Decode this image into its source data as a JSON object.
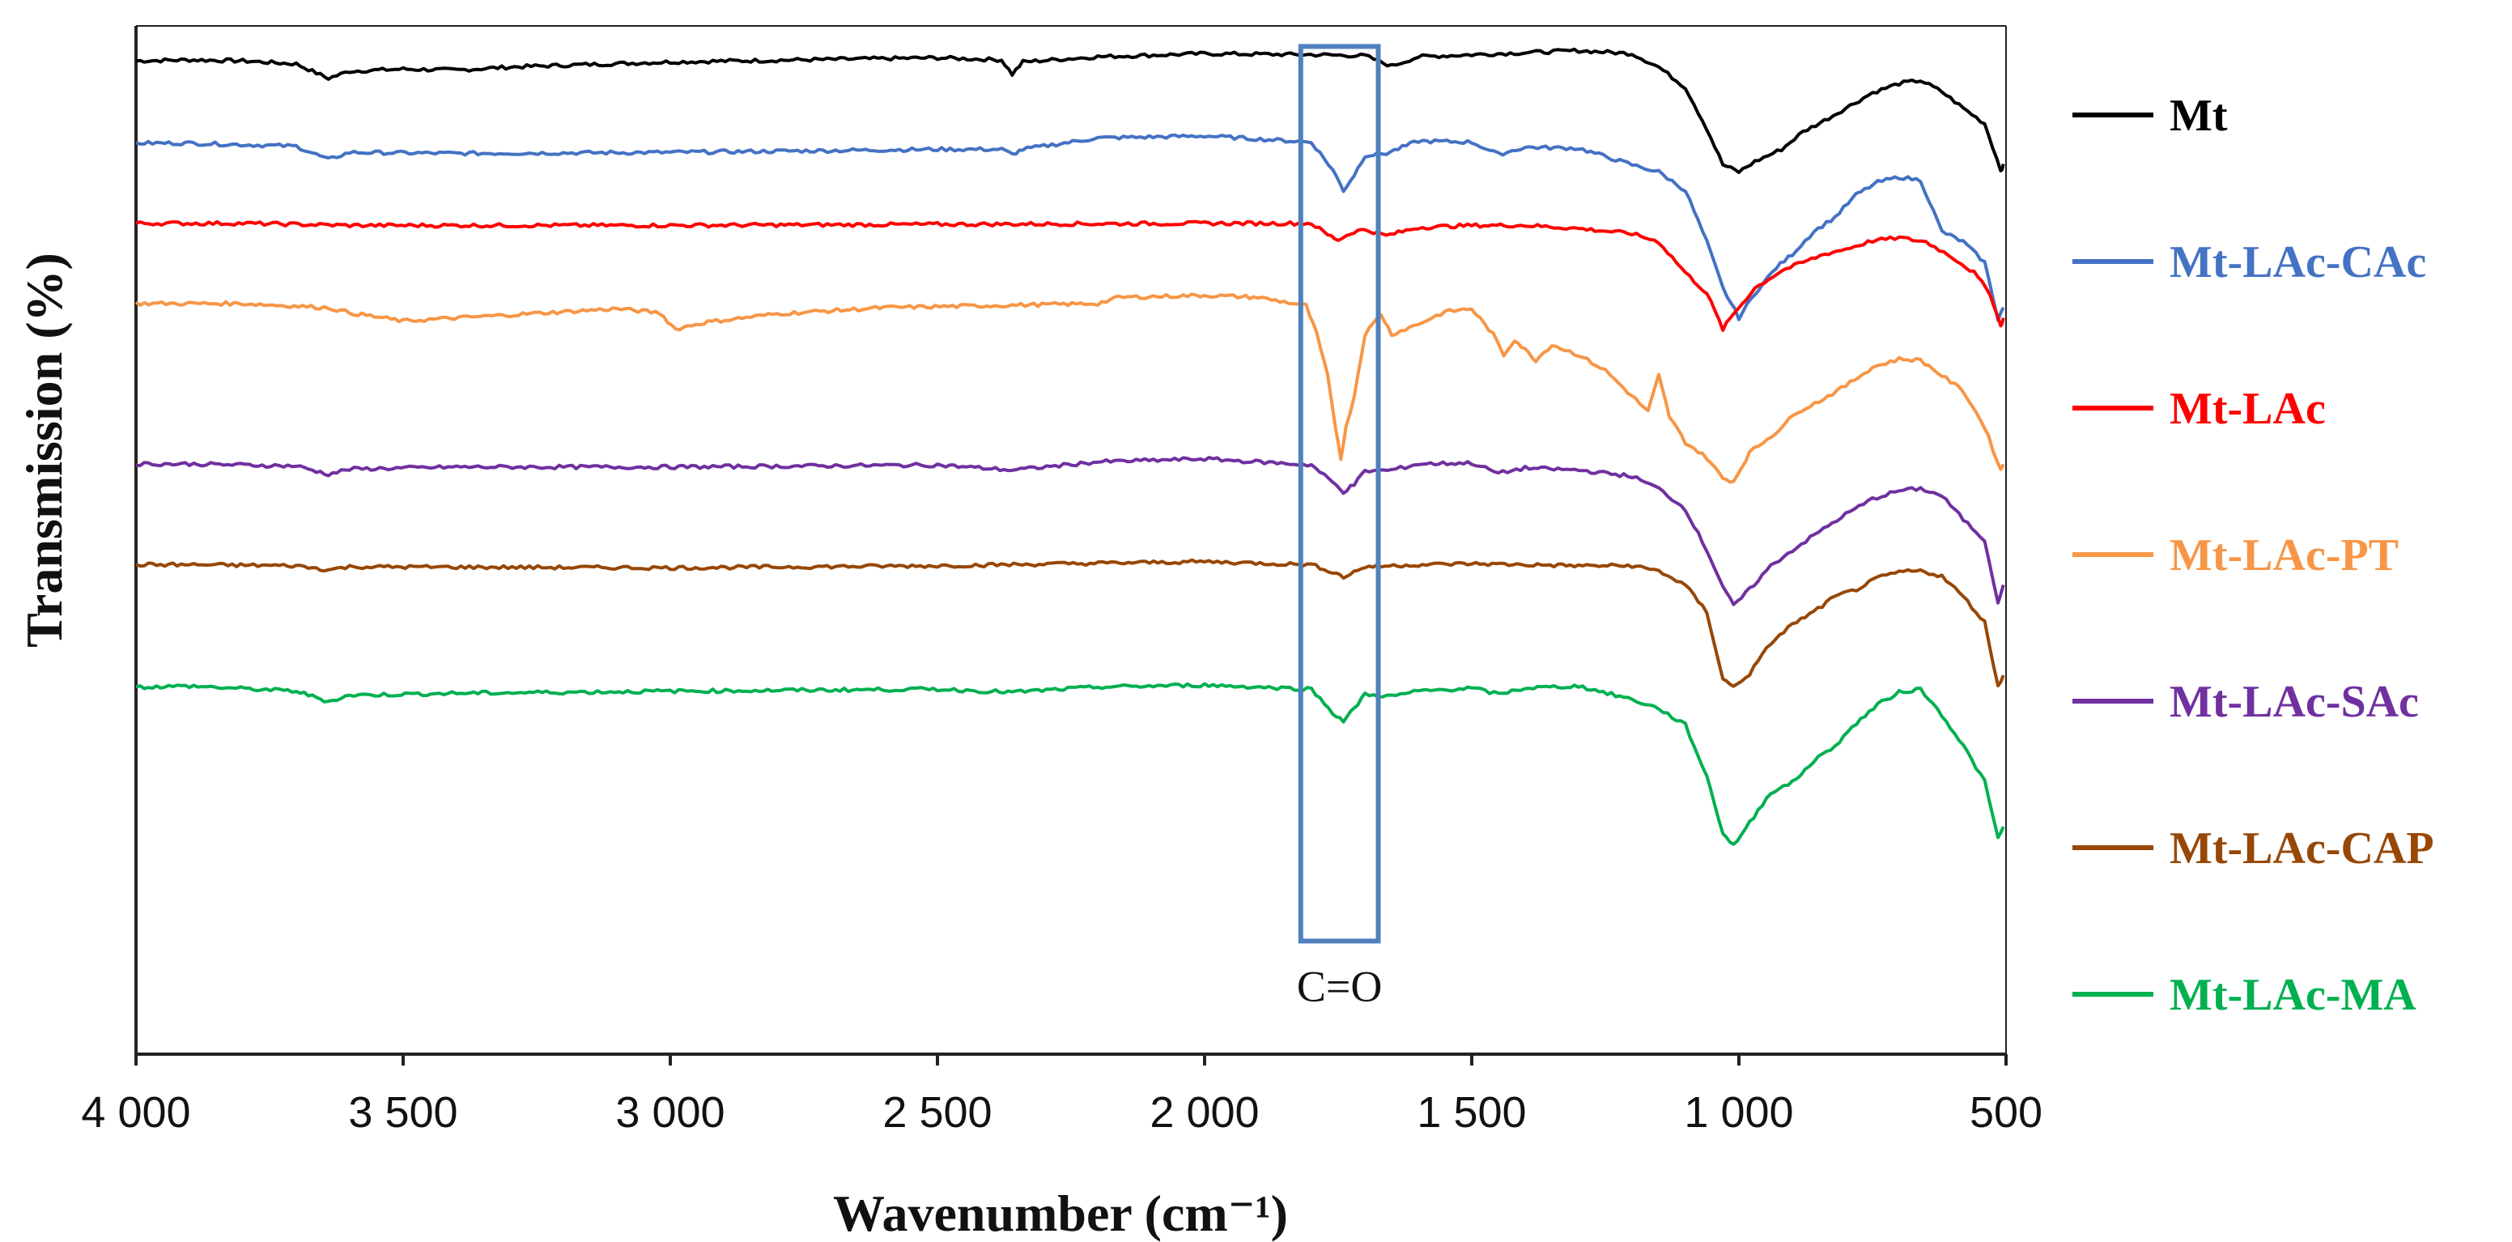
{
  "chart_data": {
    "type": "line",
    "title": "",
    "xlabel": "Wavenumber (cm⁻¹)",
    "ylabel": "Transmission (%)",
    "xlim": [
      4000,
      500
    ],
    "x_reversed": true,
    "ylim": [
      0,
      100
    ],
    "x_ticks": [
      4000,
      3500,
      3000,
      2500,
      2000,
      1500,
      1000,
      500
    ],
    "x_tick_labels": [
      "4 000",
      "3 500",
      "3 000",
      "2 500",
      "2 000",
      "1 500",
      "1 000",
      "500"
    ],
    "y_ticks_shown": false,
    "grid": false,
    "legend_position": "right",
    "annotation": {
      "label": "C=O",
      "x_range": [
        1820,
        1675
      ],
      "y_range": [
        11,
        98
      ]
    },
    "series": [
      {
        "name": "Mt",
        "color": "#000000",
        "points": [
          [
            4000,
            96.6
          ],
          [
            3900,
            96.7
          ],
          [
            3800,
            96.6
          ],
          [
            3700,
            96.3
          ],
          [
            3640,
            94.9
          ],
          [
            3600,
            95.6
          ],
          [
            3500,
            95.8
          ],
          [
            3400,
            95.7
          ],
          [
            3300,
            96.0
          ],
          [
            3000,
            96.5
          ],
          [
            2500,
            96.9
          ],
          [
            2380,
            96.7
          ],
          [
            2360,
            95.3
          ],
          [
            2340,
            96.5
          ],
          [
            2200,
            97.0
          ],
          [
            2000,
            97.3
          ],
          [
            1800,
            97.2
          ],
          [
            1700,
            97.1
          ],
          [
            1650,
            96.1
          ],
          [
            1600,
            97.0
          ],
          [
            1500,
            97.2
          ],
          [
            1300,
            97.6
          ],
          [
            1200,
            97.3
          ],
          [
            1150,
            96.0
          ],
          [
            1100,
            94.0
          ],
          [
            1060,
            90.0
          ],
          [
            1030,
            86.5
          ],
          [
            1000,
            85.8
          ],
          [
            970,
            86.8
          ],
          [
            920,
            88.0
          ],
          [
            880,
            89.7
          ],
          [
            840,
            90.8
          ],
          [
            800,
            92.0
          ],
          [
            750,
            93.5
          ],
          [
            700,
            94.4
          ],
          [
            660,
            94.7
          ],
          [
            620,
            93.6
          ],
          [
            580,
            92.0
          ],
          [
            540,
            90.5
          ],
          [
            510,
            86.0
          ],
          [
            505,
            86.4
          ]
        ]
      },
      {
        "name": "Mt-LAc-CAc",
        "color": "#4472C4",
        "points": [
          [
            4000,
            88.6
          ],
          [
            3900,
            88.6
          ],
          [
            3700,
            88.3
          ],
          [
            3640,
            87.0
          ],
          [
            3600,
            87.7
          ],
          [
            3400,
            87.6
          ],
          [
            3000,
            87.7
          ],
          [
            2500,
            88.0
          ],
          [
            2380,
            88.0
          ],
          [
            2360,
            87.5
          ],
          [
            2340,
            88.0
          ],
          [
            2200,
            89.1
          ],
          [
            2000,
            89.3
          ],
          [
            1800,
            88.7
          ],
          [
            1760,
            86.0
          ],
          [
            1740,
            84.0
          ],
          [
            1720,
            85.5
          ],
          [
            1700,
            87.4
          ],
          [
            1660,
            87.6
          ],
          [
            1600,
            88.8
          ],
          [
            1500,
            88.7
          ],
          [
            1450,
            87.5
          ],
          [
            1400,
            88.2
          ],
          [
            1300,
            88.1
          ],
          [
            1200,
            86.5
          ],
          [
            1150,
            85.8
          ],
          [
            1100,
            84.0
          ],
          [
            1060,
            79.0
          ],
          [
            1030,
            74.5
          ],
          [
            1000,
            71.6
          ],
          [
            970,
            74.0
          ],
          [
            930,
            76.5
          ],
          [
            900,
            77.8
          ],
          [
            860,
            80.0
          ],
          [
            820,
            81.4
          ],
          [
            780,
            83.6
          ],
          [
            740,
            84.8
          ],
          [
            700,
            85.3
          ],
          [
            660,
            85.0
          ],
          [
            620,
            80.0
          ],
          [
            580,
            79.0
          ],
          [
            540,
            77.0
          ],
          [
            515,
            71.5
          ],
          [
            505,
            72.6
          ]
        ]
      },
      {
        "name": "Mt-LAc",
        "color": "#FF0000",
        "points": [
          [
            4000,
            80.8
          ],
          [
            3800,
            80.8
          ],
          [
            3600,
            80.6
          ],
          [
            3000,
            80.6
          ],
          [
            2500,
            80.7
          ],
          [
            2000,
            80.8
          ],
          [
            1800,
            80.8
          ],
          [
            1770,
            79.7
          ],
          [
            1750,
            79.2
          ],
          [
            1720,
            80.0
          ],
          [
            1700,
            80.2
          ],
          [
            1660,
            79.6
          ],
          [
            1600,
            80.4
          ],
          [
            1500,
            80.6
          ],
          [
            1400,
            80.6
          ],
          [
            1300,
            80.3
          ],
          [
            1200,
            79.8
          ],
          [
            1150,
            79.0
          ],
          [
            1100,
            76.0
          ],
          [
            1060,
            74.0
          ],
          [
            1030,
            70.5
          ],
          [
            1010,
            72.0
          ],
          [
            970,
            74.5
          ],
          [
            920,
            76.2
          ],
          [
            880,
            77.0
          ],
          [
            840,
            77.8
          ],
          [
            800,
            78.3
          ],
          [
            750,
            79.1
          ],
          [
            700,
            79.4
          ],
          [
            650,
            79.0
          ],
          [
            600,
            77.5
          ],
          [
            560,
            76.0
          ],
          [
            530,
            74.0
          ],
          [
            510,
            70.8
          ],
          [
            505,
            71.6
          ]
        ]
      },
      {
        "name": "Mt-LAc-PT",
        "color": "#F79646",
        "points": [
          [
            4000,
            73.0
          ],
          [
            3800,
            73.0
          ],
          [
            3640,
            72.6
          ],
          [
            3600,
            72.1
          ],
          [
            3500,
            71.3
          ],
          [
            3300,
            71.9
          ],
          [
            3100,
            72.5
          ],
          [
            3020,
            72.1
          ],
          [
            2990,
            70.5
          ],
          [
            2960,
            70.9
          ],
          [
            2930,
            71.2
          ],
          [
            2800,
            72.0
          ],
          [
            2600,
            72.6
          ],
          [
            2400,
            72.8
          ],
          [
            2200,
            73.0
          ],
          [
            2160,
            73.6
          ],
          [
            2000,
            73.8
          ],
          [
            1900,
            73.6
          ],
          [
            1810,
            72.8
          ],
          [
            1790,
            70.0
          ],
          [
            1770,
            66.0
          ],
          [
            1755,
            61.0
          ],
          [
            1745,
            58.0
          ],
          [
            1735,
            61.0
          ],
          [
            1720,
            64.0
          ],
          [
            1700,
            70.0
          ],
          [
            1670,
            72.0
          ],
          [
            1650,
            70.0
          ],
          [
            1600,
            71.0
          ],
          [
            1550,
            72.2
          ],
          [
            1500,
            72.5
          ],
          [
            1460,
            70.0
          ],
          [
            1440,
            68.0
          ],
          [
            1420,
            69.5
          ],
          [
            1400,
            68.5
          ],
          [
            1380,
            67.5
          ],
          [
            1350,
            69.0
          ],
          [
            1300,
            68.0
          ],
          [
            1250,
            66.5
          ],
          [
            1200,
            64.0
          ],
          [
            1170,
            62.5
          ],
          [
            1150,
            66.0
          ],
          [
            1130,
            62.0
          ],
          [
            1100,
            59.5
          ],
          [
            1060,
            58.0
          ],
          [
            1030,
            56.0
          ],
          [
            1010,
            55.7
          ],
          [
            980,
            58.5
          ],
          [
            930,
            60.5
          ],
          [
            890,
            62.5
          ],
          [
            850,
            63.5
          ],
          [
            800,
            65.0
          ],
          [
            750,
            66.8
          ],
          [
            700,
            67.6
          ],
          [
            660,
            67.5
          ],
          [
            620,
            66.0
          ],
          [
            580,
            64.5
          ],
          [
            540,
            61.0
          ],
          [
            510,
            56.8
          ],
          [
            505,
            57.4
          ]
        ]
      },
      {
        "name": "Mt-LAc-SAc",
        "color": "#7030A0",
        "points": [
          [
            4000,
            57.4
          ],
          [
            3900,
            57.4
          ],
          [
            3700,
            57.2
          ],
          [
            3640,
            56.4
          ],
          [
            3600,
            56.9
          ],
          [
            3400,
            57.1
          ],
          [
            3000,
            57.1
          ],
          [
            2500,
            57.3
          ],
          [
            2360,
            56.8
          ],
          [
            2200,
            57.6
          ],
          [
            2000,
            57.9
          ],
          [
            1800,
            57.3
          ],
          [
            1760,
            55.6
          ],
          [
            1740,
            54.7
          ],
          [
            1720,
            55.4
          ],
          [
            1700,
            56.7
          ],
          [
            1650,
            56.8
          ],
          [
            1600,
            57.4
          ],
          [
            1500,
            57.5
          ],
          [
            1450,
            56.5
          ],
          [
            1400,
            57.0
          ],
          [
            1300,
            56.8
          ],
          [
            1200,
            56.2
          ],
          [
            1150,
            55.0
          ],
          [
            1100,
            53.0
          ],
          [
            1060,
            49.0
          ],
          [
            1030,
            45.5
          ],
          [
            1010,
            43.6
          ],
          [
            980,
            45.2
          ],
          [
            940,
            47.5
          ],
          [
            900,
            49.0
          ],
          [
            850,
            50.8
          ],
          [
            800,
            52.5
          ],
          [
            750,
            54.0
          ],
          [
            700,
            54.8
          ],
          [
            660,
            55.0
          ],
          [
            620,
            54.3
          ],
          [
            580,
            52.0
          ],
          [
            540,
            50.0
          ],
          [
            515,
            44.0
          ],
          [
            505,
            45.5
          ]
        ]
      },
      {
        "name": "Mt-LAc-CAP",
        "color": "#974706",
        "points": [
          [
            4000,
            47.6
          ],
          [
            3900,
            47.6
          ],
          [
            3700,
            47.5
          ],
          [
            3640,
            47.1
          ],
          [
            3600,
            47.4
          ],
          [
            3000,
            47.3
          ],
          [
            2500,
            47.5
          ],
          [
            2000,
            47.9
          ],
          [
            1800,
            47.6
          ],
          [
            1760,
            46.9
          ],
          [
            1740,
            46.4
          ],
          [
            1720,
            46.9
          ],
          [
            1700,
            47.4
          ],
          [
            1600,
            47.6
          ],
          [
            1500,
            47.7
          ],
          [
            1400,
            47.6
          ],
          [
            1300,
            47.5
          ],
          [
            1200,
            47.5
          ],
          [
            1150,
            47.0
          ],
          [
            1100,
            45.6
          ],
          [
            1060,
            43.0
          ],
          [
            1030,
            36.5
          ],
          [
            1010,
            35.7
          ],
          [
            980,
            37.0
          ],
          [
            940,
            40.0
          ],
          [
            900,
            41.8
          ],
          [
            860,
            43.0
          ],
          [
            820,
            44.5
          ],
          [
            780,
            45.2
          ],
          [
            740,
            46.3
          ],
          [
            700,
            46.9
          ],
          [
            660,
            47.0
          ],
          [
            620,
            46.5
          ],
          [
            580,
            44.5
          ],
          [
            540,
            42.0
          ],
          [
            515,
            35.8
          ],
          [
            505,
            36.9
          ]
        ]
      },
      {
        "name": "Mt-LAc-MA",
        "color": "#00B050",
        "points": [
          [
            4000,
            35.7
          ],
          [
            3900,
            35.8
          ],
          [
            3700,
            35.3
          ],
          [
            3640,
            34.3
          ],
          [
            3600,
            34.9
          ],
          [
            3400,
            35.1
          ],
          [
            3000,
            35.3
          ],
          [
            2500,
            35.5
          ],
          [
            2360,
            35.2
          ],
          [
            2200,
            35.7
          ],
          [
            2000,
            35.9
          ],
          [
            1800,
            35.5
          ],
          [
            1760,
            33.2
          ],
          [
            1740,
            32.4
          ],
          [
            1720,
            33.6
          ],
          [
            1700,
            35.0
          ],
          [
            1650,
            34.8
          ],
          [
            1600,
            35.3
          ],
          [
            1500,
            35.6
          ],
          [
            1450,
            35.0
          ],
          [
            1400,
            35.6
          ],
          [
            1300,
            35.8
          ],
          [
            1200,
            34.5
          ],
          [
            1150,
            33.6
          ],
          [
            1100,
            32.0
          ],
          [
            1060,
            27.0
          ],
          [
            1030,
            21.5
          ],
          [
            1010,
            20.3
          ],
          [
            980,
            22.5
          ],
          [
            940,
            25.5
          ],
          [
            900,
            26.4
          ],
          [
            860,
            28.5
          ],
          [
            820,
            30.0
          ],
          [
            780,
            32.2
          ],
          [
            740,
            34.0
          ],
          [
            700,
            35.2
          ],
          [
            660,
            35.5
          ],
          [
            620,
            33.0
          ],
          [
            580,
            30.0
          ],
          [
            540,
            26.5
          ],
          [
            515,
            21.0
          ],
          [
            505,
            22.0
          ]
        ]
      }
    ]
  }
}
